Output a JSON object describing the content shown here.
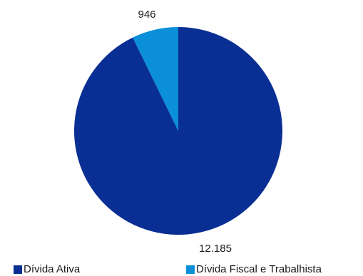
{
  "chart_data": {
    "type": "pie",
    "categories": [
      "Dívida Ativa",
      "Dívida Fiscal e Trabalhista"
    ],
    "values": [
      12185,
      946
    ],
    "value_labels": [
      "12.185",
      "946"
    ],
    "colors": [
      "#0a2f94",
      "#0a8fd8"
    ],
    "legend_position": "bottom"
  }
}
